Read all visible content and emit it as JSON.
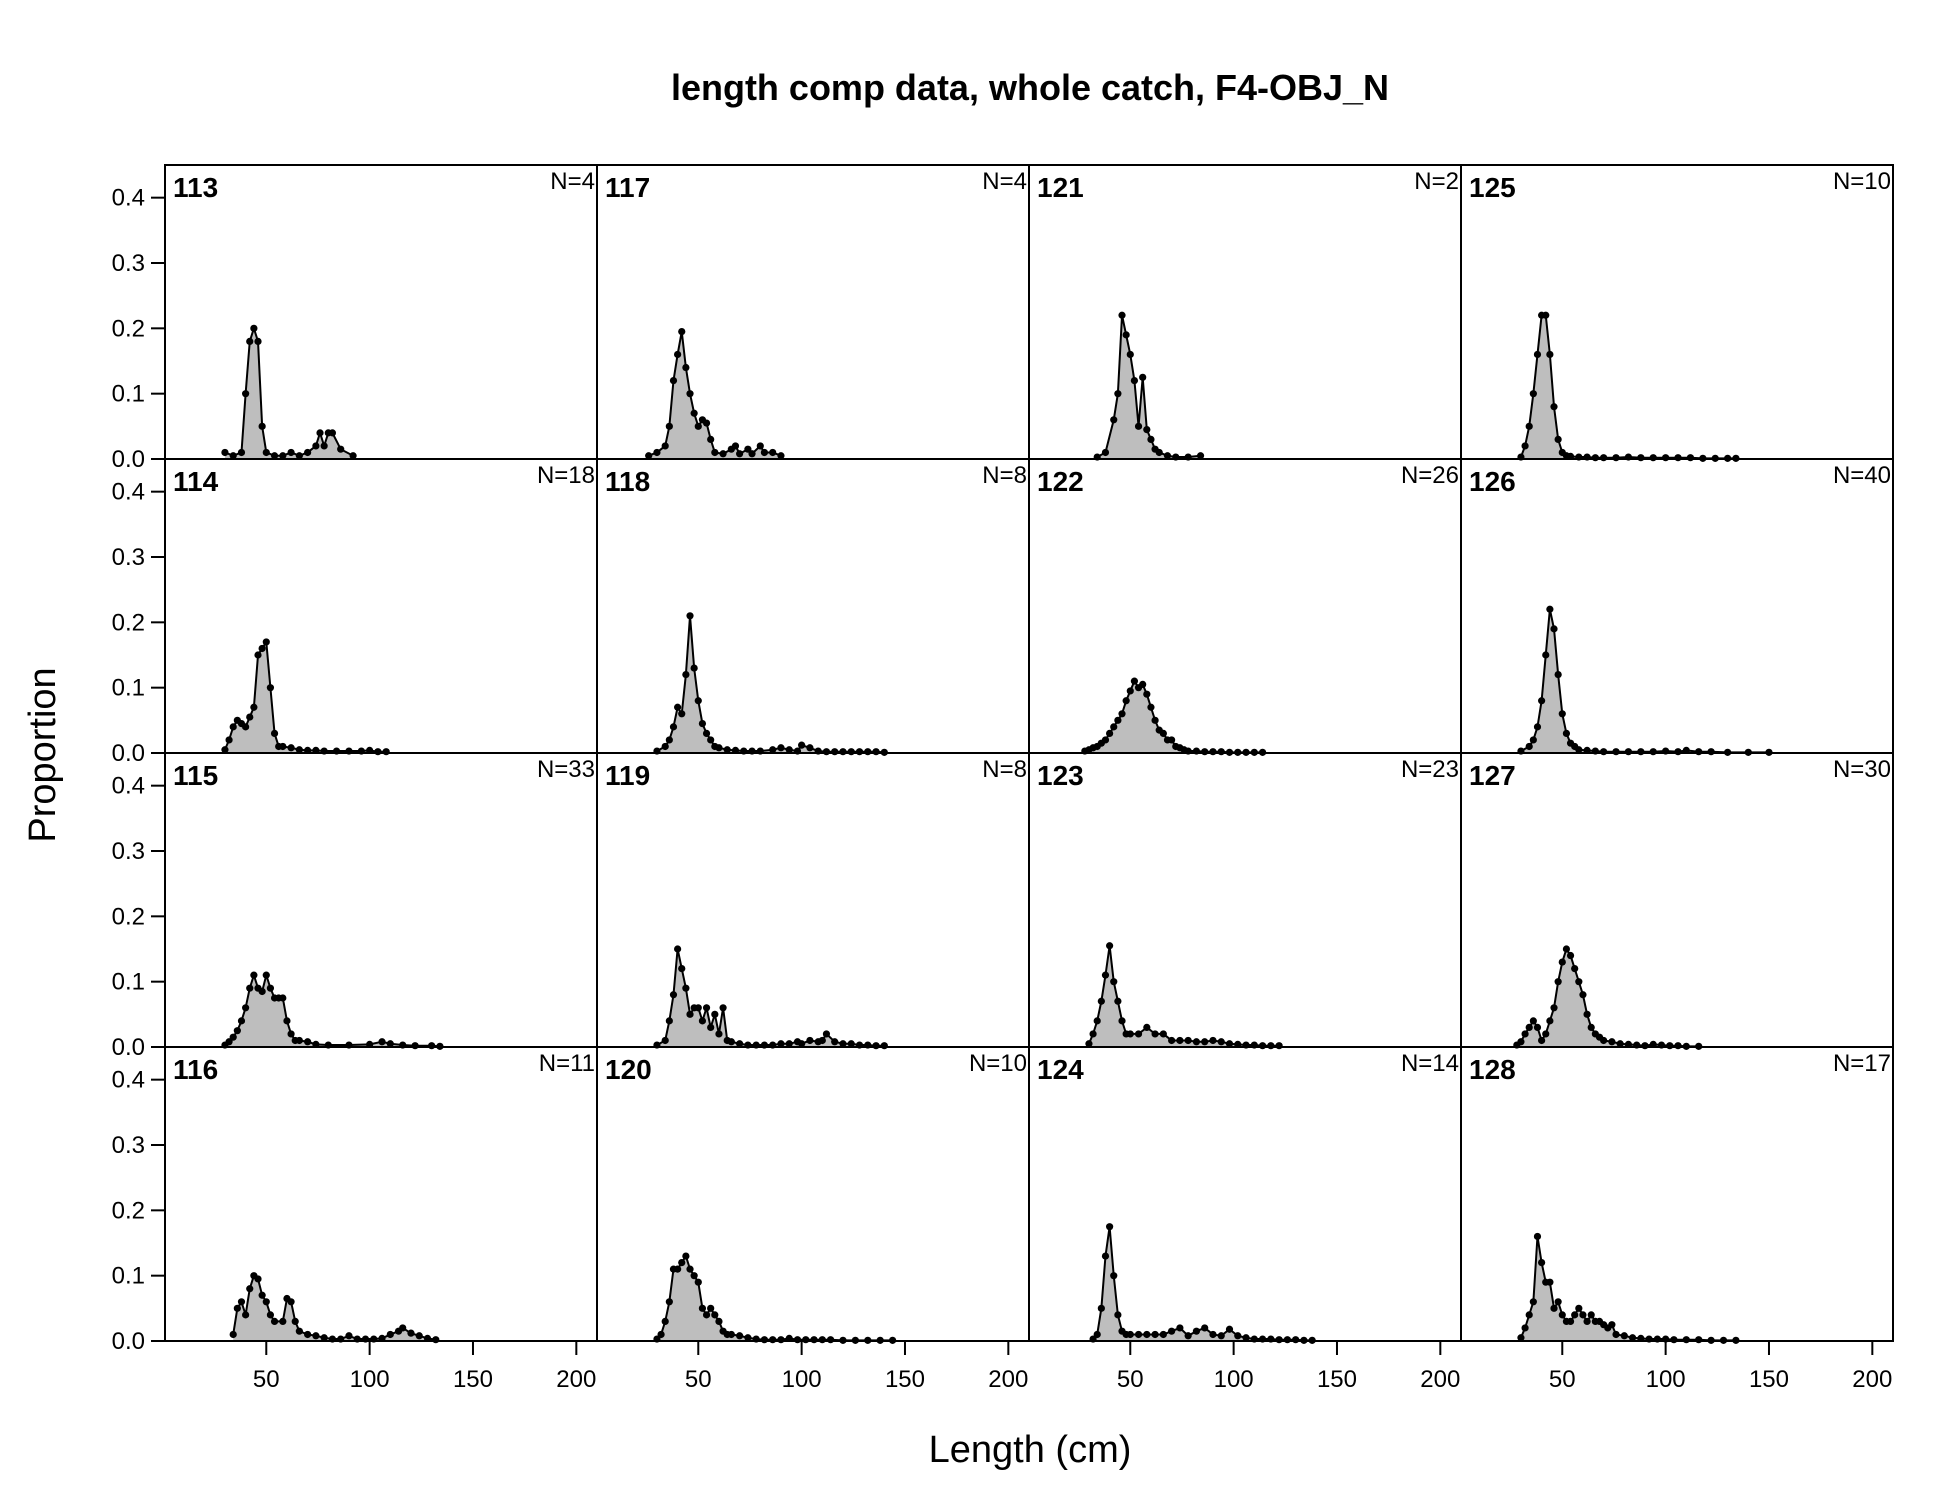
{
  "chart_data": {
    "type": "area",
    "title": "length comp data, whole catch, F4-OBJ_N",
    "xlabel": "Length (cm)",
    "ylabel": "Proportion",
    "xlim": [
      1,
      210
    ],
    "ylim": [
      0,
      0.45
    ],
    "x_ticks": [
      50,
      100,
      150,
      200
    ],
    "y_ticks": [
      0.0,
      0.1,
      0.2,
      0.3,
      0.4
    ],
    "y_tick_labels": [
      "0.0",
      "0.1",
      "0.2",
      "0.3",
      "0.4"
    ],
    "x_tick_labels": [
      "50",
      "100",
      "150",
      "200"
    ],
    "grid": "off",
    "legend": "none",
    "colors": {
      "fill": "#bebebe",
      "line": "#000000",
      "point": "#000000"
    },
    "layout": {
      "rows": 4,
      "cols": 4,
      "order": "column-major"
    },
    "panels": [
      {
        "label": "113",
        "n": "N=4",
        "x": [
          30,
          34,
          38,
          40,
          42,
          44,
          46,
          48,
          50,
          54,
          58,
          62,
          66,
          70,
          74,
          76,
          78,
          80,
          82,
          86,
          92
        ],
        "y": [
          0.01,
          0.005,
          0.01,
          0.1,
          0.18,
          0.2,
          0.18,
          0.05,
          0.01,
          0.005,
          0.005,
          0.01,
          0.005,
          0.01,
          0.02,
          0.04,
          0.02,
          0.04,
          0.04,
          0.015,
          0.005
        ]
      },
      {
        "label": "114",
        "n": "N=18",
        "x": [
          30,
          32,
          34,
          36,
          38,
          40,
          42,
          44,
          46,
          48,
          50,
          52,
          54,
          56,
          58,
          62,
          66,
          70,
          74,
          78,
          84,
          90,
          96,
          100,
          104,
          108
        ],
        "y": [
          0.005,
          0.02,
          0.04,
          0.05,
          0.045,
          0.04,
          0.055,
          0.07,
          0.15,
          0.16,
          0.17,
          0.1,
          0.03,
          0.01,
          0.01,
          0.008,
          0.005,
          0.004,
          0.004,
          0.003,
          0.003,
          0.003,
          0.003,
          0.004,
          0.002,
          0.002
        ]
      },
      {
        "label": "115",
        "n": "N=33",
        "x": [
          30,
          32,
          34,
          36,
          38,
          40,
          42,
          44,
          46,
          48,
          50,
          52,
          54,
          56,
          58,
          60,
          62,
          64,
          66,
          70,
          74,
          80,
          90,
          100,
          106,
          110,
          116,
          122,
          130,
          134
        ],
        "y": [
          0.003,
          0.008,
          0.015,
          0.025,
          0.04,
          0.06,
          0.09,
          0.11,
          0.09,
          0.085,
          0.11,
          0.09,
          0.075,
          0.075,
          0.075,
          0.04,
          0.02,
          0.01,
          0.01,
          0.008,
          0.004,
          0.003,
          0.003,
          0.004,
          0.008,
          0.005,
          0.003,
          0.002,
          0.002,
          0.001
        ]
      },
      {
        "label": "116",
        "n": "N=11",
        "x": [
          34,
          36,
          38,
          40,
          42,
          44,
          46,
          48,
          50,
          52,
          54,
          58,
          60,
          62,
          64,
          66,
          70,
          74,
          78,
          82,
          86,
          90,
          94,
          98,
          102,
          106,
          110,
          114,
          116,
          120,
          124,
          128,
          132
        ],
        "y": [
          0.01,
          0.05,
          0.06,
          0.04,
          0.08,
          0.1,
          0.095,
          0.07,
          0.06,
          0.04,
          0.03,
          0.03,
          0.065,
          0.06,
          0.03,
          0.015,
          0.01,
          0.008,
          0.005,
          0.003,
          0.003,
          0.008,
          0.003,
          0.003,
          0.003,
          0.004,
          0.01,
          0.015,
          0.02,
          0.012,
          0.008,
          0.004,
          0.002
        ]
      },
      {
        "label": "117",
        "n": "N=4",
        "x": [
          26,
          30,
          34,
          36,
          38,
          40,
          42,
          44,
          46,
          48,
          50,
          52,
          54,
          56,
          58,
          62,
          66,
          68,
          70,
          74,
          76,
          80,
          82,
          86,
          90
        ],
        "y": [
          0.005,
          0.01,
          0.02,
          0.05,
          0.12,
          0.16,
          0.195,
          0.14,
          0.1,
          0.07,
          0.05,
          0.06,
          0.055,
          0.03,
          0.01,
          0.008,
          0.015,
          0.02,
          0.008,
          0.015,
          0.008,
          0.02,
          0.01,
          0.01,
          0.005
        ]
      },
      {
        "label": "118",
        "n": "N=8",
        "x": [
          30,
          34,
          36,
          38,
          40,
          42,
          44,
          46,
          48,
          50,
          52,
          54,
          56,
          58,
          60,
          64,
          68,
          72,
          76,
          80,
          86,
          90,
          94,
          98,
          100,
          104,
          108,
          112,
          116,
          120,
          124,
          128,
          132,
          136,
          140
        ],
        "y": [
          0.003,
          0.01,
          0.02,
          0.04,
          0.07,
          0.06,
          0.12,
          0.21,
          0.13,
          0.08,
          0.045,
          0.03,
          0.02,
          0.01,
          0.008,
          0.005,
          0.004,
          0.003,
          0.003,
          0.003,
          0.005,
          0.008,
          0.005,
          0.003,
          0.012,
          0.008,
          0.003,
          0.002,
          0.002,
          0.002,
          0.002,
          0.002,
          0.002,
          0.002,
          0.001
        ]
      },
      {
        "label": "119",
        "n": "N=8",
        "x": [
          30,
          34,
          36,
          38,
          40,
          42,
          44,
          46,
          48,
          50,
          52,
          54,
          56,
          58,
          60,
          62,
          64,
          66,
          70,
          74,
          78,
          82,
          86,
          90,
          94,
          98,
          100,
          104,
          108,
          110,
          112,
          116,
          120,
          124,
          128,
          132,
          136,
          140
        ],
        "y": [
          0.003,
          0.01,
          0.04,
          0.08,
          0.15,
          0.12,
          0.09,
          0.05,
          0.06,
          0.06,
          0.04,
          0.06,
          0.03,
          0.05,
          0.02,
          0.06,
          0.01,
          0.008,
          0.005,
          0.003,
          0.003,
          0.003,
          0.003,
          0.005,
          0.005,
          0.008,
          0.005,
          0.01,
          0.008,
          0.01,
          0.02,
          0.008,
          0.005,
          0.005,
          0.003,
          0.003,
          0.002,
          0.002
        ]
      },
      {
        "label": "120",
        "n": "N=10",
        "x": [
          30,
          32,
          34,
          36,
          38,
          40,
          42,
          44,
          46,
          48,
          50,
          52,
          54,
          56,
          58,
          60,
          62,
          64,
          66,
          70,
          74,
          78,
          82,
          86,
          90,
          94,
          98,
          102,
          106,
          110,
          114,
          120,
          126,
          132,
          138,
          144
        ],
        "y": [
          0.003,
          0.01,
          0.03,
          0.06,
          0.11,
          0.11,
          0.12,
          0.13,
          0.11,
          0.1,
          0.09,
          0.05,
          0.04,
          0.05,
          0.04,
          0.03,
          0.015,
          0.01,
          0.01,
          0.008,
          0.005,
          0.003,
          0.002,
          0.002,
          0.002,
          0.004,
          0.002,
          0.002,
          0.002,
          0.002,
          0.002,
          0.001,
          0.001,
          0.001,
          0.001,
          0.001
        ]
      },
      {
        "label": "121",
        "n": "N=2",
        "x": [
          34,
          38,
          42,
          44,
          46,
          48,
          50,
          52,
          54,
          56,
          58,
          60,
          62,
          64,
          68,
          72,
          78,
          84
        ],
        "y": [
          0.003,
          0.01,
          0.06,
          0.1,
          0.22,
          0.19,
          0.16,
          0.12,
          0.05,
          0.125,
          0.045,
          0.03,
          0.015,
          0.01,
          0.005,
          0.003,
          0.003,
          0.005
        ]
      },
      {
        "label": "122",
        "n": "N=26",
        "x": [
          28,
          30,
          32,
          34,
          36,
          38,
          40,
          42,
          44,
          46,
          48,
          50,
          52,
          54,
          56,
          58,
          60,
          62,
          64,
          66,
          68,
          70,
          72,
          74,
          76,
          78,
          82,
          86,
          90,
          94,
          98,
          102,
          106,
          110,
          114
        ],
        "y": [
          0.003,
          0.005,
          0.008,
          0.01,
          0.015,
          0.02,
          0.03,
          0.04,
          0.05,
          0.06,
          0.08,
          0.095,
          0.11,
          0.1,
          0.105,
          0.09,
          0.07,
          0.05,
          0.035,
          0.03,
          0.02,
          0.02,
          0.01,
          0.008,
          0.005,
          0.003,
          0.003,
          0.002,
          0.002,
          0.002,
          0.001,
          0.001,
          0.001,
          0.001,
          0.001
        ]
      },
      {
        "label": "123",
        "n": "N=23",
        "x": [
          30,
          32,
          34,
          36,
          38,
          40,
          42,
          44,
          46,
          48,
          50,
          54,
          58,
          62,
          66,
          70,
          74,
          78,
          82,
          86,
          90,
          94,
          98,
          102,
          106,
          110,
          114,
          118,
          122
        ],
        "y": [
          0.005,
          0.02,
          0.04,
          0.07,
          0.11,
          0.155,
          0.1,
          0.07,
          0.04,
          0.02,
          0.02,
          0.02,
          0.03,
          0.02,
          0.02,
          0.01,
          0.01,
          0.01,
          0.008,
          0.008,
          0.01,
          0.008,
          0.005,
          0.004,
          0.003,
          0.003,
          0.002,
          0.002,
          0.002
        ]
      },
      {
        "label": "124",
        "n": "N=14",
        "x": [
          32,
          34,
          36,
          38,
          40,
          42,
          44,
          46,
          48,
          50,
          54,
          58,
          62,
          66,
          70,
          74,
          78,
          82,
          86,
          90,
          94,
          98,
          102,
          106,
          110,
          114,
          118,
          122,
          126,
          130,
          134,
          138
        ],
        "y": [
          0.003,
          0.01,
          0.05,
          0.13,
          0.175,
          0.1,
          0.04,
          0.015,
          0.01,
          0.01,
          0.01,
          0.01,
          0.01,
          0.01,
          0.015,
          0.02,
          0.008,
          0.015,
          0.02,
          0.01,
          0.008,
          0.018,
          0.008,
          0.005,
          0.003,
          0.003,
          0.003,
          0.002,
          0.002,
          0.002,
          0.001,
          0.001
        ]
      },
      {
        "label": "125",
        "n": "N=10",
        "x": [
          30,
          32,
          34,
          36,
          38,
          40,
          42,
          44,
          46,
          48,
          50,
          52,
          54,
          58,
          62,
          66,
          70,
          76,
          82,
          88,
          94,
          100,
          106,
          112,
          118,
          124,
          130,
          134
        ],
        "y": [
          0.003,
          0.02,
          0.05,
          0.1,
          0.16,
          0.22,
          0.22,
          0.16,
          0.08,
          0.03,
          0.01,
          0.005,
          0.004,
          0.003,
          0.003,
          0.002,
          0.002,
          0.002,
          0.003,
          0.002,
          0.002,
          0.002,
          0.002,
          0.002,
          0.001,
          0.001,
          0.001,
          0.001
        ]
      },
      {
        "label": "126",
        "n": "N=40",
        "x": [
          30,
          34,
          36,
          38,
          40,
          42,
          44,
          46,
          48,
          50,
          52,
          54,
          56,
          58,
          62,
          66,
          70,
          76,
          82,
          88,
          94,
          100,
          106,
          110,
          116,
          122,
          130,
          140,
          150
        ],
        "y": [
          0.003,
          0.01,
          0.02,
          0.04,
          0.08,
          0.15,
          0.22,
          0.19,
          0.12,
          0.06,
          0.03,
          0.015,
          0.01,
          0.005,
          0.004,
          0.003,
          0.002,
          0.002,
          0.002,
          0.002,
          0.002,
          0.003,
          0.002,
          0.004,
          0.002,
          0.002,
          0.001,
          0.001,
          0.001
        ]
      },
      {
        "label": "127",
        "n": "N=30",
        "x": [
          28,
          30,
          32,
          34,
          36,
          38,
          40,
          42,
          44,
          46,
          48,
          50,
          52,
          54,
          56,
          58,
          60,
          62,
          64,
          66,
          68,
          70,
          74,
          78,
          82,
          86,
          90,
          94,
          98,
          102,
          106,
          110,
          116
        ],
        "y": [
          0.003,
          0.008,
          0.02,
          0.03,
          0.04,
          0.03,
          0.01,
          0.02,
          0.04,
          0.06,
          0.1,
          0.13,
          0.15,
          0.14,
          0.12,
          0.1,
          0.08,
          0.05,
          0.03,
          0.02,
          0.015,
          0.01,
          0.008,
          0.005,
          0.004,
          0.003,
          0.002,
          0.004,
          0.003,
          0.002,
          0.002,
          0.001,
          0.001
        ]
      },
      {
        "label": "128",
        "n": "N=17",
        "x": [
          30,
          32,
          34,
          36,
          38,
          40,
          42,
          44,
          46,
          48,
          50,
          52,
          54,
          56,
          58,
          60,
          62,
          64,
          66,
          68,
          70,
          72,
          74,
          76,
          80,
          84,
          88,
          92,
          96,
          100,
          104,
          110,
          116,
          122,
          128,
          134
        ],
        "y": [
          0.005,
          0.02,
          0.04,
          0.06,
          0.16,
          0.12,
          0.09,
          0.09,
          0.05,
          0.06,
          0.04,
          0.03,
          0.03,
          0.04,
          0.05,
          0.04,
          0.03,
          0.04,
          0.03,
          0.03,
          0.025,
          0.02,
          0.025,
          0.01,
          0.008,
          0.005,
          0.004,
          0.003,
          0.003,
          0.003,
          0.002,
          0.002,
          0.002,
          0.001,
          0.001,
          0.001
        ]
      }
    ]
  }
}
